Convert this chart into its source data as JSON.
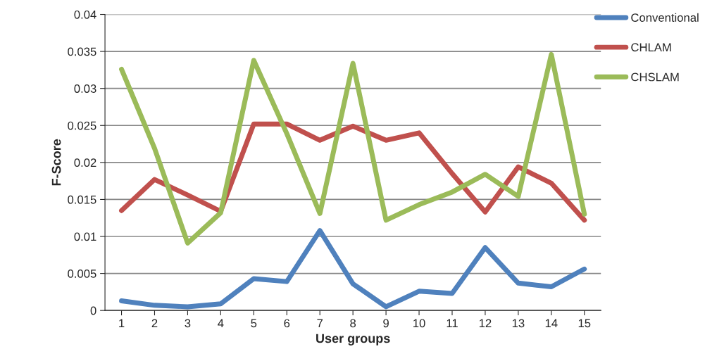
{
  "chart_data": {
    "type": "line",
    "xlabel": "User groups",
    "ylabel": "F-Score",
    "categories": [
      "1",
      "2",
      "3",
      "4",
      "5",
      "6",
      "7",
      "8",
      "9",
      "10",
      "11",
      "12",
      "13",
      "14",
      "15"
    ],
    "series": [
      {
        "name": "Conventional",
        "color": "#4f81bd",
        "values": [
          0.0013,
          0.0007,
          0.0005,
          0.0009,
          0.0043,
          0.0039,
          0.0108,
          0.0036,
          0.0005,
          0.0026,
          0.0023,
          0.0085,
          0.0037,
          0.0032,
          0.0056
        ]
      },
      {
        "name": "CHLAM",
        "color": "#c0504d",
        "values": [
          0.0135,
          0.0177,
          0.0156,
          0.0134,
          0.0252,
          0.0252,
          0.023,
          0.0249,
          0.023,
          0.024,
          0.0185,
          0.0133,
          0.0194,
          0.0172,
          0.0122
        ]
      },
      {
        "name": "CHSLAM",
        "color": "#9bbb59",
        "values": [
          0.0326,
          0.0219,
          0.0091,
          0.0132,
          0.0338,
          0.0239,
          0.0131,
          0.0334,
          0.0122,
          0.0143,
          0.016,
          0.0184,
          0.0154,
          0.0346,
          0.013
        ]
      }
    ],
    "ylim": [
      0,
      0.04
    ],
    "yticks": [
      0,
      0.005,
      0.01,
      0.015,
      0.02,
      0.025,
      0.03,
      0.035,
      0.04
    ],
    "grid": "y",
    "legend": "top right",
    "marker": "none",
    "line_style": "solid"
  }
}
